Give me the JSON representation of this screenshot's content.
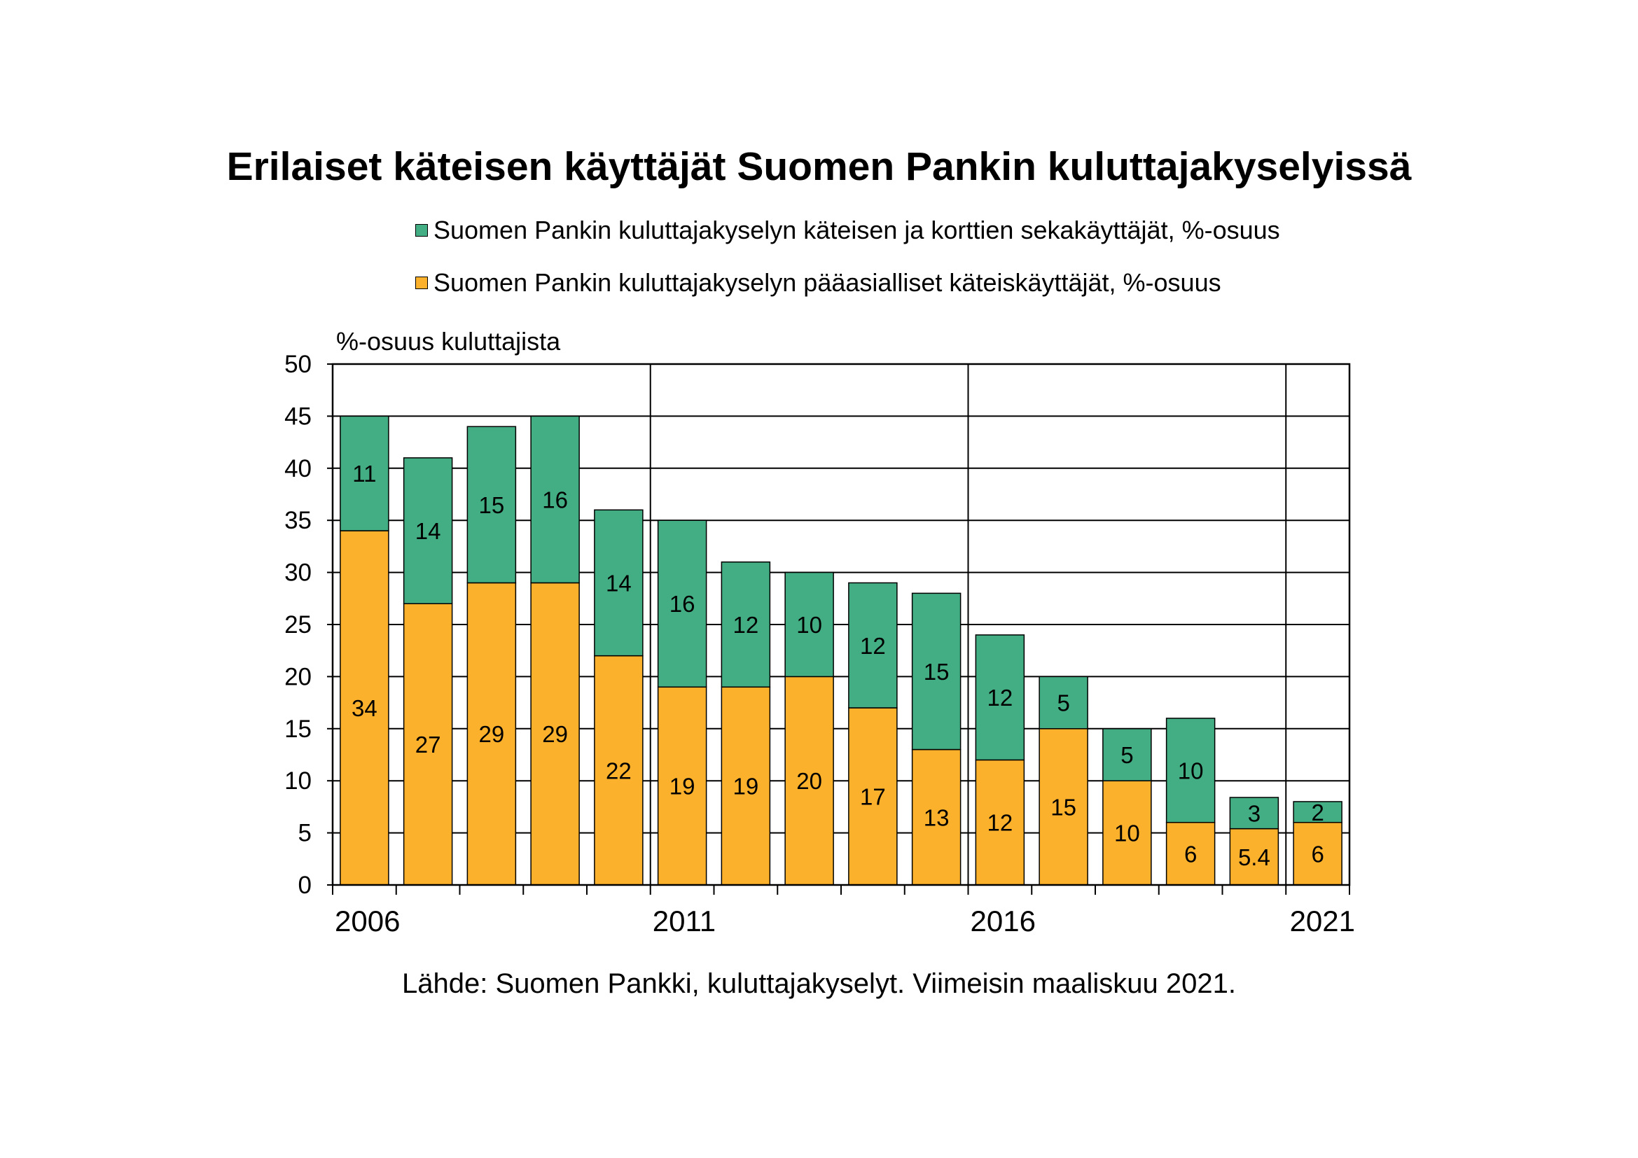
{
  "chart_data": {
    "type": "bar",
    "stacked": true,
    "title": "Erilaiset käteisen käyttäjät Suomen Pankin kuluttajakyselyissä",
    "ylabel": "%-osuus kuluttajista",
    "ylim": [
      0,
      50
    ],
    "yticks": [
      "0",
      "5",
      "10",
      "15",
      "20",
      "25",
      "30",
      "35",
      "40",
      "45",
      "50"
    ],
    "x_tick_labels": [
      "2006",
      "",
      "",
      "",
      "",
      "2011",
      "",
      "",
      "",
      "",
      "2016",
      "",
      "",
      "",
      "",
      "2021"
    ],
    "grid": true,
    "legend_position": "top",
    "categories": [
      "2006",
      "2007",
      "2008",
      "2009",
      "2010",
      "2011",
      "2012",
      "2013",
      "2014",
      "2015",
      "2016",
      "2017",
      "2018",
      "2019",
      "2020",
      "2021"
    ],
    "series": [
      {
        "name": "Suomen Pankin kuluttajakyselyn pääasialliset käteiskäyttäjät, %-osuus",
        "color": "#FBB12B",
        "values": [
          34,
          27,
          29,
          29,
          22,
          19,
          19,
          20,
          17,
          13,
          12,
          15,
          10,
          6,
          5.4,
          6
        ],
        "labels": [
          "34",
          "27",
          "29",
          "29",
          "22",
          "19",
          "19",
          "20",
          "17",
          "13",
          "12",
          "15",
          "10",
          "6",
          "5.4",
          "6"
        ]
      },
      {
        "name": "Suomen Pankin kuluttajakyselyn käteisen ja korttien sekakäyttäjät, %-osuus",
        "color": "#43AD83",
        "values": [
          11,
          14,
          15,
          16,
          14,
          16,
          12,
          10,
          12,
          15,
          12,
          5,
          5,
          10,
          3,
          2
        ],
        "labels": [
          "11",
          "14",
          "15",
          "16",
          "14",
          "16",
          "12",
          "10",
          "12",
          "15",
          "12",
          "5",
          "5",
          "10",
          "3",
          "2"
        ]
      }
    ],
    "source": "Lähde: Suomen Pankki, kuluttajakyselyt. Viimeisin maaliskuu 2021."
  }
}
